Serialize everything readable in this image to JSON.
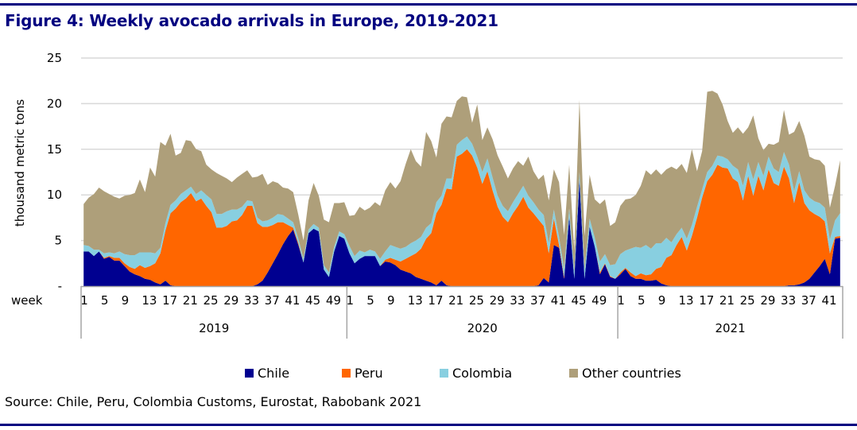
{
  "title": "Figure 4: Weekly avocado arrivals in Europe, 2019-2021",
  "source": "Source: Chile, Peru, Colombia Customs, Eurostat, Rabobank 2021",
  "chart_data": {
    "type": "area",
    "stacked": true,
    "title": "Figure 4: Weekly avocado arrivals in Europe, 2019-2021",
    "ylabel": "thousand metric tons",
    "xlabel": "week",
    "ylim": [
      0,
      25
    ],
    "yticks": [
      0,
      5,
      10,
      15,
      20,
      25
    ],
    "ytick_labels": [
      "-",
      "5",
      "10",
      "15",
      "20",
      "25"
    ],
    "grid": "horizontal",
    "legend_position": "bottom",
    "years": [
      {
        "label": "2019",
        "weeks": 52,
        "tick_labels": [
          "1",
          "5",
          "9",
          "13",
          "17",
          "21",
          "25",
          "29",
          "33",
          "37",
          "41",
          "45",
          "49"
        ]
      },
      {
        "label": "2020",
        "weeks": 53,
        "tick_labels": [
          "1",
          "5",
          "9",
          "13",
          "17",
          "21",
          "25",
          "29",
          "33",
          "37",
          "41",
          "45",
          "49"
        ]
      },
      {
        "label": "2021",
        "weeks": 44,
        "tick_labels": [
          "1",
          "5",
          "9",
          "13",
          "17",
          "21",
          "25",
          "29",
          "33",
          "37",
          "41"
        ]
      }
    ],
    "series": [
      {
        "name": "Chile",
        "color": "#000090",
        "values": [
          3.8,
          3.8,
          3.3,
          3.8,
          3.0,
          3.2,
          2.8,
          2.8,
          2.2,
          1.6,
          1.3,
          1.1,
          0.8,
          0.7,
          0.4,
          0.2,
          0.6,
          0.1,
          0,
          0,
          0,
          0,
          0,
          0,
          0,
          0,
          0,
          0,
          0,
          0,
          0,
          0,
          0,
          0,
          0.2,
          0.6,
          1.5,
          2.5,
          3.5,
          4.6,
          5.5,
          6.2,
          4.5,
          2.6,
          5.8,
          6.3,
          6.0,
          1.8,
          1.0,
          3.8,
          5.5,
          5.2,
          3.6,
          2.5,
          3.0,
          3.3,
          3.3,
          3.3,
          2.2,
          2.7,
          2.6,
          2.3,
          1.8,
          1.6,
          1.4,
          1.0,
          0.8,
          0.6,
          0.4,
          0.1,
          0.6,
          0.1,
          0,
          0,
          0,
          0,
          0,
          0,
          0,
          0,
          0,
          0,
          0,
          0,
          0,
          0,
          0,
          0,
          0,
          0.1,
          0.9,
          0.4,
          4.5,
          4.2,
          0.8,
          7.6,
          0.8,
          11.7,
          0.8,
          6.5,
          4.3,
          1.3,
          2.4,
          1.0,
          0.8,
          1.3,
          1.9,
          1.1,
          0.8,
          0.8,
          0.6,
          0.6,
          0.7,
          0.3,
          0.1,
          0,
          0,
          0,
          0,
          0,
          0,
          0,
          0,
          0,
          0,
          0,
          0,
          0,
          0,
          0,
          0,
          0,
          0,
          0,
          0,
          0,
          0,
          0,
          0.1,
          0.1,
          0.2,
          0.4,
          0.8,
          1.5,
          2.2,
          3.0,
          1.3,
          5.2,
          5.3
        ]
      },
      {
        "name": "Peru",
        "color": "#ff6600",
        "values": [
          0,
          0,
          0,
          0,
          0.1,
          0.1,
          0.3,
          0.3,
          0.3,
          0.5,
          0.6,
          1.2,
          1.2,
          1.5,
          2.1,
          3.4,
          5.5,
          7.9,
          8.5,
          9.2,
          9.6,
          10.2,
          9.3,
          9.6,
          8.8,
          8.1,
          6.4,
          6.4,
          6.6,
          7.1,
          7.2,
          7.8,
          8.8,
          8.8,
          6.7,
          5.9,
          5.0,
          4.2,
          3.5,
          2.4,
          1.2,
          0.2,
          0.2,
          0,
          0,
          0,
          0,
          0,
          0,
          0,
          0,
          0,
          0,
          0,
          0,
          0,
          0,
          0,
          0,
          0.2,
          0.5,
          0.6,
          0.9,
          1.4,
          1.9,
          2.6,
          3.3,
          4.6,
          5.4,
          7.9,
          8.3,
          10.6,
          10.6,
          14.2,
          14.5,
          15.0,
          14.3,
          13.0,
          11.2,
          12.6,
          10.5,
          8.7,
          7.6,
          7.0,
          8.0,
          8.8,
          9.8,
          8.6,
          8.0,
          7.2,
          5.7,
          3.2,
          2.9,
          0.3,
          0.2,
          0,
          0,
          0,
          0,
          0,
          0,
          0.2,
          0.1,
          0.1,
          0,
          0.2,
          0.1,
          0.4,
          0.3,
          0.6,
          0.6,
          0.7,
          1.2,
          1.8,
          3.0,
          3.4,
          4.5,
          5.4,
          3.9,
          5.5,
          7.5,
          9.7,
          11.5,
          12.2,
          13.3,
          13.0,
          12.9,
          11.8,
          11.4,
          9.4,
          12.1,
          9.9,
          12.1,
          10.5,
          12.8,
          11.3,
          11.0,
          13.1,
          11.7,
          9.0,
          11.2,
          8.7,
          7.5,
          6.4,
          5.4,
          4.1,
          2.3,
          0.2,
          0.2
        ]
      },
      {
        "name": "Colombia",
        "color": "#88cfe0",
        "values": [
          0.7,
          0.6,
          0.7,
          0.2,
          0.5,
          0.4,
          0.5,
          0.7,
          1.0,
          1.3,
          1.5,
          1.4,
          1.7,
          1.5,
          1.1,
          0.6,
          0.8,
          0.9,
          0.9,
          0.9,
          0.9,
          0.7,
          0.8,
          0.9,
          1.2,
          1.4,
          1.5,
          1.5,
          1.6,
          1.3,
          1.2,
          0.9,
          0.6,
          0.5,
          0.6,
          0.6,
          0.7,
          0.8,
          0.9,
          0.8,
          0.7,
          0.6,
          0.5,
          0.4,
          0.4,
          0.5,
          0.4,
          0.5,
          0.5,
          0.5,
          0.5,
          0.5,
          0.8,
          0.8,
          0.9,
          0.4,
          0.7,
          0.5,
          0.8,
          0.9,
          1.4,
          1.4,
          1.4,
          1.3,
          1.4,
          1.4,
          1.3,
          1.2,
          1.1,
          1.2,
          1.0,
          1.1,
          1.2,
          1.3,
          1.5,
          1.4,
          1.3,
          1.2,
          1.3,
          1.4,
          1.4,
          1.2,
          1.2,
          1.2,
          1.2,
          1.3,
          1.2,
          1.3,
          1.2,
          1.1,
          1.2,
          1.1,
          1.0,
          0.9,
          0.9,
          0.9,
          0.8,
          0.8,
          1.0,
          0.9,
          1.0,
          1.2,
          1.0,
          1.2,
          1.6,
          2.0,
          1.9,
          2.6,
          3.2,
          2.8,
          3.3,
          2.8,
          2.8,
          2.6,
          2.2,
          1.4,
          1.2,
          1.0,
          1.3,
          1.2,
          1.2,
          0.9,
          1.0,
          1.0,
          1.0,
          1.2,
          1.0,
          1.4,
          1.4,
          1.6,
          1.5,
          1.8,
          1.5,
          1.6,
          1.4,
          1.6,
          1.5,
          1.6,
          1.5,
          1.3,
          1.2,
          1.4,
          1.4,
          1.4,
          1.5,
          1.5,
          1.5,
          1.8,
          2.5
        ]
      },
      {
        "name": "Other countries",
        "color": "#ae9f7a",
        "values": [
          4.5,
          5.3,
          6.1,
          6.8,
          6.8,
          6.4,
          6.2,
          5.8,
          6.4,
          6.6,
          6.8,
          8.0,
          6.6,
          9.3,
          8.4,
          11.6,
          8.5,
          7.8,
          4.9,
          4.5,
          5.5,
          5.0,
          4.9,
          4.3,
          3.3,
          3.3,
          4.5,
          4.2,
          3.6,
          3.0,
          3.5,
          3.6,
          3.3,
          2.6,
          4.5,
          5.2,
          3.9,
          4.0,
          3.4,
          3.0,
          3.3,
          3.3,
          2.6,
          2.0,
          3.2,
          4.5,
          3.5,
          5.0,
          5.5,
          4.8,
          3.1,
          3.5,
          3.3,
          4.5,
          4.8,
          4.6,
          4.6,
          5.4,
          5.8,
          6.7,
          6.9,
          6.4,
          7.4,
          9.1,
          10.3,
          8.7,
          7.7,
          10.5,
          9.0,
          4.9,
          7.9,
          6.8,
          6.7,
          4.8,
          4.8,
          4.3,
          2.3,
          5.7,
          3.5,
          3.4,
          4.2,
          4.4,
          4.3,
          3.6,
          3.7,
          3.6,
          2.2,
          4.3,
          3.4,
          3.3,
          4.4,
          4.7,
          4.4,
          6.0,
          3.7,
          4.8,
          2.3,
          7.9,
          3.7,
          4.8,
          4.2,
          6.3,
          6.0,
          4.3,
          4.6,
          5.3,
          5.6,
          5.5,
          5.7,
          6.8,
          8.2,
          8.1,
          8.1,
          7.5,
          7.5,
          8.3,
          7.1,
          7.0,
          7.2,
          8.3,
          3.9,
          4.2,
          8.8,
          8.2,
          6.8,
          5.7,
          4.2,
          3.6,
          4.6,
          5.7,
          3.8,
          7.0,
          2.6,
          2.8,
          1.4,
          2.6,
          3.3,
          4.6,
          3.3,
          6.5,
          5.5,
          6.0,
          4.5,
          4.6,
          4.7,
          4.6,
          3.5,
          3.8,
          5.8
        ]
      }
    ]
  },
  "legend": [
    {
      "label": "Chile",
      "color": "#000090"
    },
    {
      "label": "Peru",
      "color": "#ff6600"
    },
    {
      "label": "Colombia",
      "color": "#88cfe0"
    },
    {
      "label": "Other countries",
      "color": "#ae9f7a"
    }
  ]
}
